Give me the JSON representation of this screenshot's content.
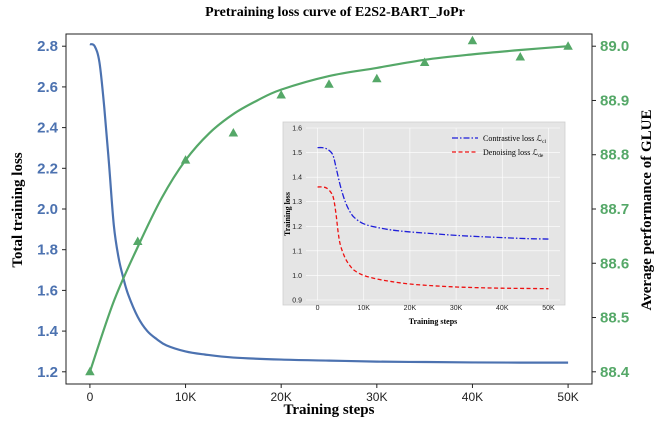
{
  "chart_data": [
    {
      "type": "line",
      "title": "Pretraining loss curve of E2S2-BART_JoPr",
      "xlabel": "Training steps",
      "ylabel": "Total training loss",
      "y2label": "Average performance of GLUE",
      "xlim": [
        0,
        50000
      ],
      "ylim": [
        1.2,
        2.8
      ],
      "y2lim": [
        88.4,
        89.0
      ],
      "x_ticks": [
        0,
        10000,
        20000,
        30000,
        40000,
        50000
      ],
      "x_tick_labels": [
        "0",
        "10K",
        "20K",
        "30K",
        "40K",
        "50K"
      ],
      "y_ticks": [
        1.2,
        1.4,
        1.6,
        1.8,
        2.0,
        2.2,
        2.4,
        2.6,
        2.8
      ],
      "y_tick_labels": [
        "1.2",
        "1.4",
        "1.6",
        "1.8",
        "2.0",
        "2.2",
        "2.4",
        "2.6",
        "2.8"
      ],
      "y2_ticks": [
        88.4,
        88.5,
        88.6,
        88.7,
        88.8,
        88.9,
        89.0
      ],
      "y2_tick_labels": [
        "88.4",
        "88.5",
        "88.6",
        "88.7",
        "88.8",
        "88.9",
        "89.0"
      ],
      "grid": false,
      "colors": {
        "loss": "#4c72b0",
        "glue": "#55a868"
      },
      "series": [
        {
          "axis": "left",
          "style": "line",
          "x": [
            0,
            500,
            1000,
            1500,
            2000,
            2500,
            3000,
            3500,
            4000,
            5000,
            6000,
            7000,
            8000,
            10000,
            12000,
            15000,
            20000,
            25000,
            30000,
            35000,
            40000,
            45000,
            50000
          ],
          "y": [
            2.81,
            2.8,
            2.72,
            2.5,
            2.22,
            1.92,
            1.76,
            1.66,
            1.58,
            1.47,
            1.4,
            1.36,
            1.33,
            1.3,
            1.285,
            1.27,
            1.26,
            1.255,
            1.25,
            1.248,
            1.246,
            1.245,
            1.245
          ]
        },
        {
          "axis": "right",
          "style": "line",
          "x": [
            0,
            2500,
            5000,
            7500,
            10000,
            12500,
            15000,
            17500,
            20000,
            25000,
            30000,
            35000,
            40000,
            45000,
            50000
          ],
          "y": [
            88.4,
            88.53,
            88.63,
            88.72,
            88.79,
            88.84,
            88.875,
            88.9,
            88.92,
            88.945,
            88.96,
            88.975,
            88.985,
            88.993,
            89.0
          ]
        },
        {
          "axis": "right",
          "style": "marker",
          "marker": "triangle",
          "x": [
            0,
            5000,
            10000,
            15000,
            20000,
            25000,
            30000,
            35000,
            40000,
            45000,
            50000
          ],
          "y": [
            88.4,
            88.64,
            88.79,
            88.84,
            88.91,
            88.93,
            88.94,
            88.97,
            89.01,
            88.98,
            89.0
          ]
        }
      ]
    },
    {
      "type": "line",
      "xlabel": "Training steps",
      "ylabel": "Training loss",
      "xlim": [
        0,
        50000
      ],
      "ylim": [
        0.9,
        1.6
      ],
      "background": "#e5e5e5",
      "x_ticks": [
        0,
        10000,
        20000,
        30000,
        40000,
        50000
      ],
      "x_tick_labels": [
        "0",
        "10K",
        "20K",
        "30K",
        "40K",
        "50K"
      ],
      "y_ticks": [
        0.9,
        1.0,
        1.1,
        1.2,
        1.3,
        1.4,
        1.5,
        1.6
      ],
      "y_tick_labels": [
        "0.9",
        "1.0",
        "1.1",
        "1.2",
        "1.3",
        "1.4",
        "1.5",
        "1.6"
      ],
      "legend_position": "top-right",
      "series": [
        {
          "name": "Contrastive loss ℒ",
          "subscript": "cl",
          "color": "#1f1fd9",
          "dash": "dash-dot",
          "x": [
            0,
            1000,
            2000,
            3000,
            3500,
            4000,
            5000,
            6000,
            7000,
            8000,
            10000,
            13000,
            16000,
            20000,
            25000,
            30000,
            35000,
            40000,
            45000,
            50000
          ],
          "y": [
            1.52,
            1.52,
            1.515,
            1.5,
            1.48,
            1.44,
            1.36,
            1.3,
            1.26,
            1.235,
            1.21,
            1.195,
            1.185,
            1.177,
            1.17,
            1.163,
            1.158,
            1.154,
            1.15,
            1.148
          ]
        },
        {
          "name": "Denoising loss ℒ",
          "subscript": "de",
          "color": "#ee1111",
          "dash": "dashed",
          "x": [
            0,
            1000,
            2000,
            3000,
            3500,
            4000,
            4500,
            5000,
            6000,
            7000,
            8000,
            10000,
            13000,
            16000,
            20000,
            25000,
            30000,
            35000,
            40000,
            45000,
            50000
          ],
          "y": [
            1.36,
            1.36,
            1.355,
            1.335,
            1.31,
            1.25,
            1.17,
            1.12,
            1.07,
            1.04,
            1.02,
            1.0,
            0.985,
            0.975,
            0.965,
            0.958,
            0.953,
            0.95,
            0.948,
            0.947,
            0.946
          ]
        }
      ]
    }
  ]
}
